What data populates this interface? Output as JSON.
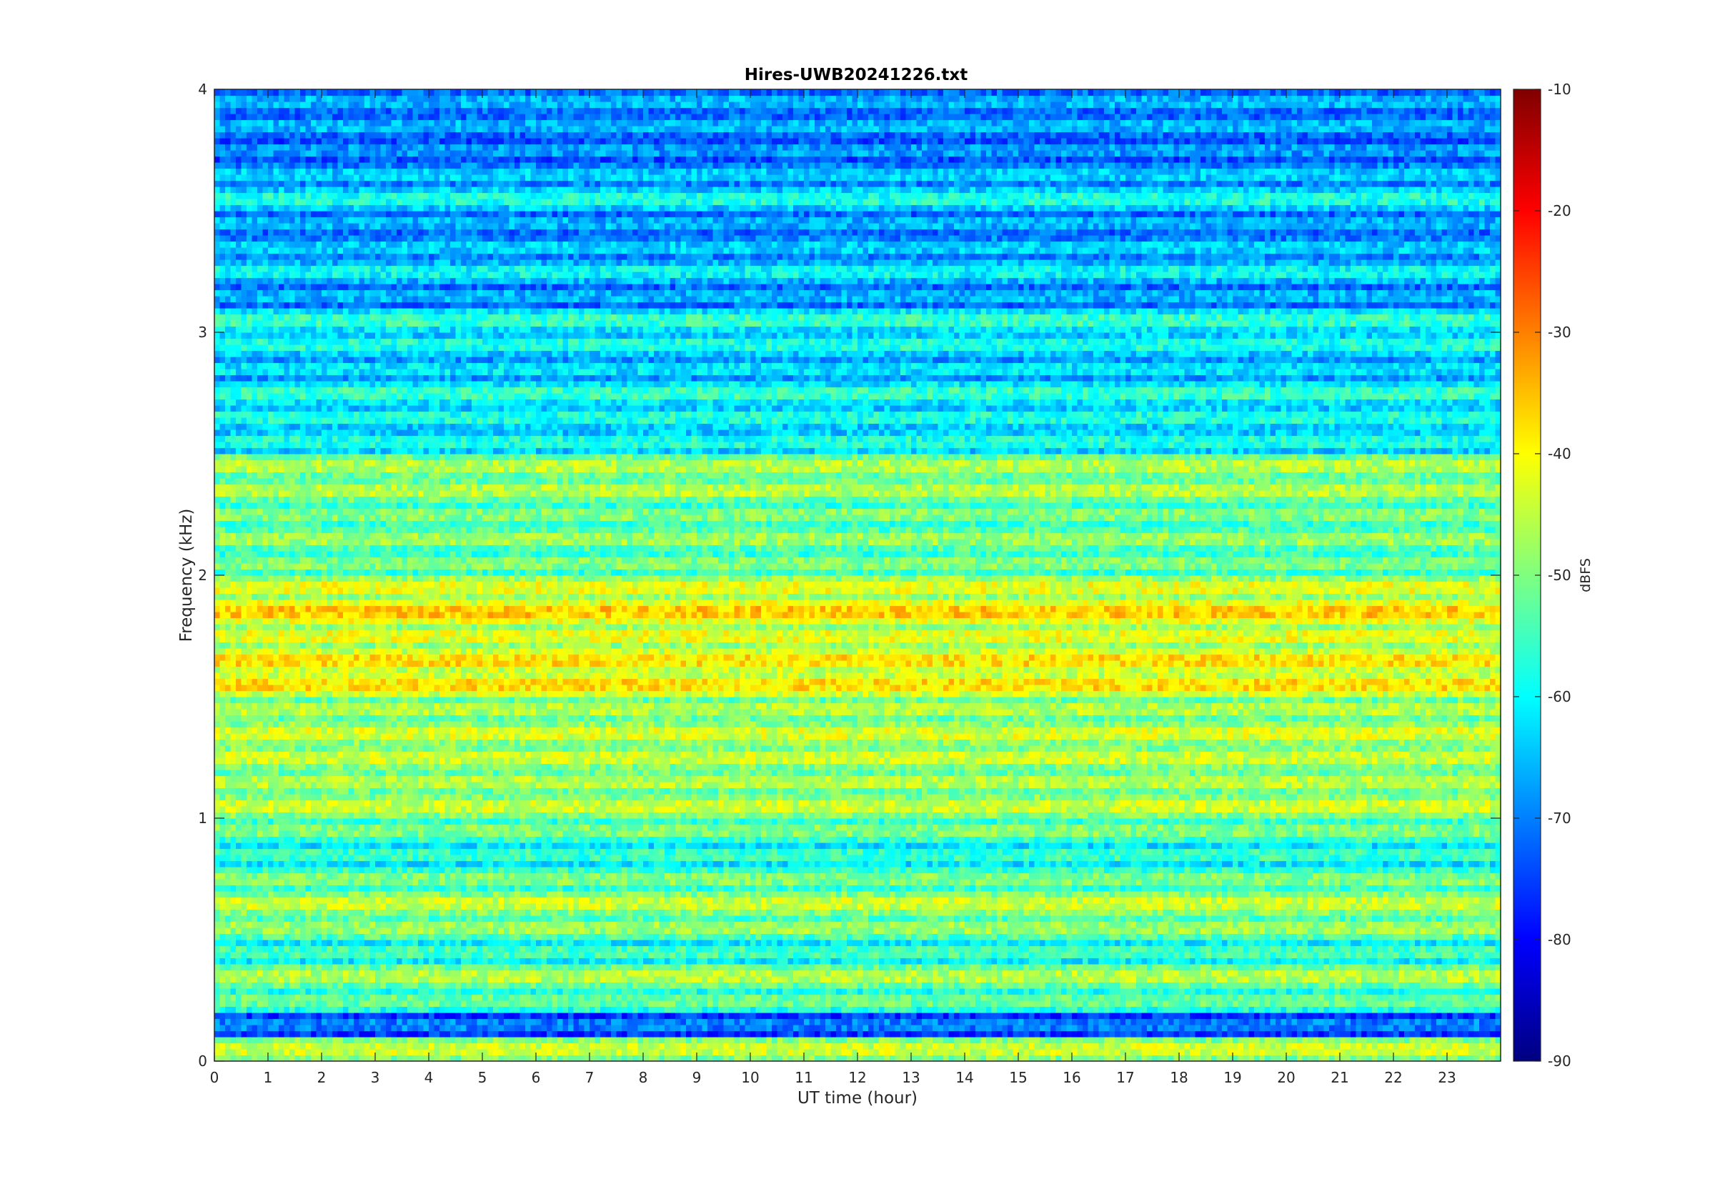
{
  "chart_data": {
    "type": "heatmap",
    "title": "Hires-UWB20241226.txt",
    "xlabel": "UT time (hour)",
    "ylabel": "Frequency (kHz)",
    "xlim": [
      0,
      24
    ],
    "ylim": [
      0,
      4
    ],
    "xticks": [
      "0",
      "1",
      "2",
      "3",
      "4",
      "5",
      "6",
      "7",
      "8",
      "9",
      "10",
      "11",
      "12",
      "13",
      "14",
      "15",
      "16",
      "17",
      "18",
      "19",
      "20",
      "21",
      "22",
      "23"
    ],
    "yticks": [
      "0",
      "1",
      "2",
      "3",
      "4"
    ],
    "colorbar": {
      "label": "dBFS",
      "colormap": "jet",
      "clim": [
        -90,
        -10
      ],
      "ticks": [
        "-90",
        "-80",
        "-70",
        "-60",
        "-50",
        "-40",
        "-30",
        "-20",
        "-10"
      ]
    },
    "grid": false,
    "approx_band_levels_dBFS": [
      {
        "freq_kHz": 0.05,
        "level": -44
      },
      {
        "freq_kHz": 0.15,
        "level": -70
      },
      {
        "freq_kHz": 0.25,
        "level": -52
      },
      {
        "freq_kHz": 0.35,
        "level": -46
      },
      {
        "freq_kHz": 0.45,
        "level": -55
      },
      {
        "freq_kHz": 0.55,
        "level": -48
      },
      {
        "freq_kHz": 0.65,
        "level": -44
      },
      {
        "freq_kHz": 0.75,
        "level": -50
      },
      {
        "freq_kHz": 0.85,
        "level": -56
      },
      {
        "freq_kHz": 0.95,
        "level": -50
      },
      {
        "freq_kHz": 1.05,
        "level": -44
      },
      {
        "freq_kHz": 1.15,
        "level": -46
      },
      {
        "freq_kHz": 1.25,
        "level": -44
      },
      {
        "freq_kHz": 1.35,
        "level": -43
      },
      {
        "freq_kHz": 1.45,
        "level": -46
      },
      {
        "freq_kHz": 1.55,
        "level": -38
      },
      {
        "freq_kHz": 1.65,
        "level": -38
      },
      {
        "freq_kHz": 1.75,
        "level": -42
      },
      {
        "freq_kHz": 1.85,
        "level": -36
      },
      {
        "freq_kHz": 1.95,
        "level": -42
      },
      {
        "freq_kHz": 2.05,
        "level": -50
      },
      {
        "freq_kHz": 2.15,
        "level": -48
      },
      {
        "freq_kHz": 2.25,
        "level": -50
      },
      {
        "freq_kHz": 2.35,
        "level": -46
      },
      {
        "freq_kHz": 2.45,
        "level": -46
      },
      {
        "freq_kHz": 2.55,
        "level": -58
      },
      {
        "freq_kHz": 2.65,
        "level": -58
      },
      {
        "freq_kHz": 2.75,
        "level": -56
      },
      {
        "freq_kHz": 2.85,
        "level": -62
      },
      {
        "freq_kHz": 2.95,
        "level": -58
      },
      {
        "freq_kHz": 3.05,
        "level": -56
      },
      {
        "freq_kHz": 3.15,
        "level": -66
      },
      {
        "freq_kHz": 3.25,
        "level": -60
      },
      {
        "freq_kHz": 3.35,
        "level": -64
      },
      {
        "freq_kHz": 3.45,
        "level": -66
      },
      {
        "freq_kHz": 3.55,
        "level": -58
      },
      {
        "freq_kHz": 3.65,
        "level": -64
      },
      {
        "freq_kHz": 3.75,
        "level": -68
      },
      {
        "freq_kHz": 3.85,
        "level": -66
      },
      {
        "freq_kHz": 3.95,
        "level": -66
      }
    ]
  }
}
